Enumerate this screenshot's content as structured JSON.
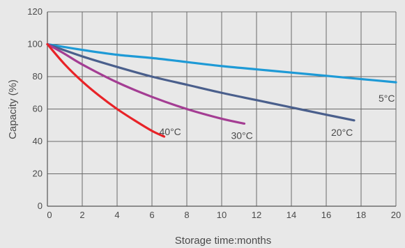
{
  "chart_data": {
    "type": "line",
    "title": "",
    "xlabel": "Storage time:months",
    "ylabel": "Capacity (%)",
    "xlim": [
      0,
      20
    ],
    "ylim": [
      0,
      120
    ],
    "x_ticks": [
      "0",
      "2",
      "4",
      "6",
      "8",
      "10",
      "12",
      "14",
      "16",
      "18",
      "20"
    ],
    "y_ticks": [
      "0",
      "20",
      "40",
      "60",
      "80",
      "100",
      "120"
    ],
    "grid": true,
    "series": [
      {
        "name": "5°C",
        "color": "#1e9ad6",
        "x": [
          0,
          2,
          4,
          6,
          8,
          10,
          12,
          14,
          16,
          18,
          20
        ],
        "y": [
          100,
          96.5,
          93.5,
          91.5,
          89,
          86.5,
          84.5,
          82.5,
          80.5,
          78.5,
          76.5
        ]
      },
      {
        "name": "20°C",
        "color": "#4a5f8c",
        "x": [
          0,
          2,
          4,
          6,
          8,
          10,
          12,
          14,
          16,
          17.6
        ],
        "y": [
          100,
          92.5,
          86,
          80,
          75,
          70,
          65.5,
          61,
          56.5,
          53
        ]
      },
      {
        "name": "30°C",
        "color": "#a43d93",
        "x": [
          0,
          1,
          2,
          4,
          6,
          8,
          10,
          11.3
        ],
        "y": [
          100,
          94,
          87.5,
          76.5,
          67.5,
          60,
          54,
          51
        ]
      },
      {
        "name": "40°C",
        "color": "#e82328",
        "x": [
          0,
          1,
          2,
          3,
          4,
          5,
          6,
          6.7
        ],
        "y": [
          100,
          87.5,
          77,
          68,
          60,
          53,
          46.5,
          43
        ]
      }
    ]
  }
}
